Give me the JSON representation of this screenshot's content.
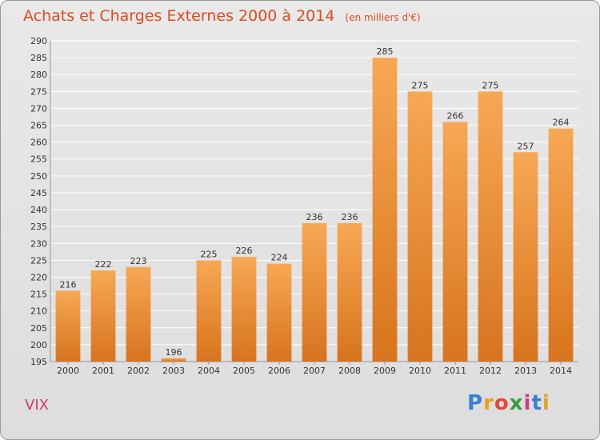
{
  "header": {
    "title": "Achats et Charges Externes 2000 à 2014",
    "unit": "(en milliers d'€)"
  },
  "footer": {
    "place": "VIX",
    "logo_letters": [
      "P",
      "r",
      "o",
      "x",
      "i",
      "t",
      "i"
    ],
    "logo_colors": [
      "#3a7fd5",
      "#e8a21a",
      "#e24a3a",
      "#3a9a3a",
      "#d03a8a",
      "#3a7fd5",
      "#e8a21a"
    ]
  },
  "colors": {
    "bar_top": "#f7a854",
    "bar_bottom": "#d8741e",
    "grid": "#ffffff",
    "title": "#e04a1e"
  },
  "chart_data": {
    "type": "bar",
    "title": "Achats et Charges Externes 2000 à 2014",
    "subtitle": "(en milliers d'€)",
    "categories": [
      "2000",
      "2001",
      "2002",
      "2003",
      "2004",
      "2005",
      "2006",
      "2007",
      "2008",
      "2009",
      "2010",
      "2011",
      "2012",
      "2013",
      "2014"
    ],
    "values": [
      216,
      222,
      223,
      196,
      225,
      226,
      224,
      236,
      236,
      285,
      275,
      266,
      275,
      257,
      264
    ],
    "ylim": [
      195,
      290
    ],
    "yticks": [
      195,
      200,
      205,
      210,
      215,
      220,
      225,
      230,
      235,
      240,
      245,
      250,
      255,
      260,
      265,
      270,
      275,
      280,
      285,
      290
    ],
    "grid": true,
    "legend": "none"
  }
}
